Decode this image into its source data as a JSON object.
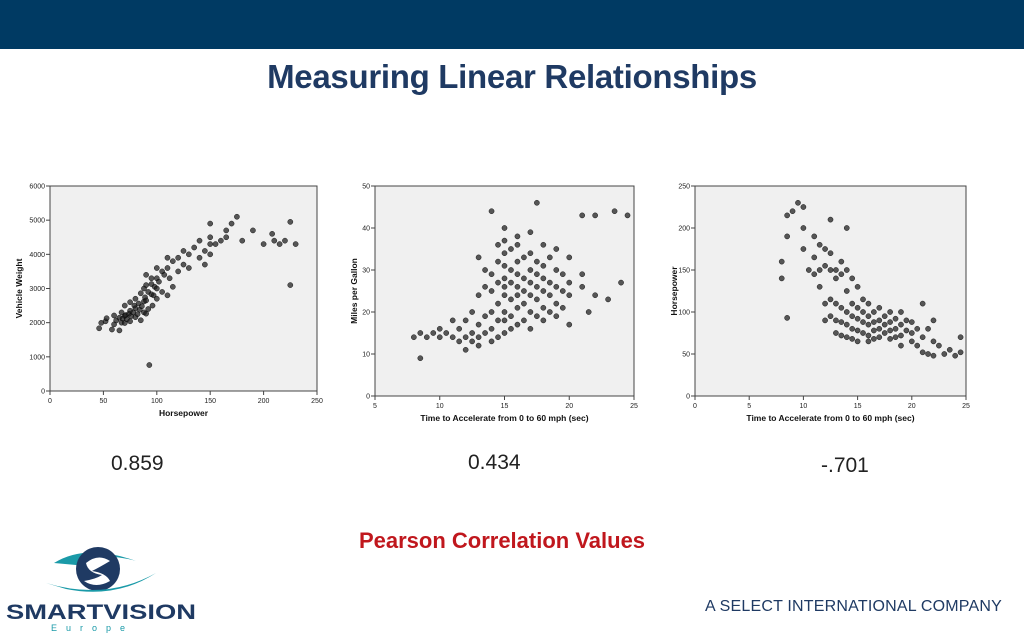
{
  "slide": {
    "title": "Measuring Linear Relationships",
    "caption": "Pearson Correlation Values",
    "company": "A SELECT INTERNATIONAL COMPANY",
    "logo_text": "SMARTVISION",
    "logo_subtext": "Europe",
    "colors": {
      "top_bar": "#003a63",
      "title": "#1f3a63",
      "caption": "#c0171d",
      "logo_teal": "#1a9aa8"
    }
  },
  "correlations": [
    {
      "value": "0.859"
    },
    {
      "value": "0.434"
    },
    {
      "value": "-.701"
    }
  ],
  "chart_data": [
    {
      "type": "scatter",
      "xlabel": "Horsepower",
      "ylabel": "Vehicle Weight",
      "xlim": [
        0,
        250
      ],
      "ylim": [
        0,
        6000
      ],
      "xticks": [
        0,
        50,
        100,
        150,
        200,
        250
      ],
      "yticks": [
        0,
        1000,
        2000,
        3000,
        4000,
        5000,
        6000
      ],
      "grid": false,
      "points": [
        [
          46,
          1835
        ],
        [
          48,
          1995
        ],
        [
          52,
          2040
        ],
        [
          53,
          2130
        ],
        [
          58,
          1800
        ],
        [
          60,
          1950
        ],
        [
          60,
          2210
        ],
        [
          62,
          2065
        ],
        [
          65,
          1773
        ],
        [
          65,
          2145
        ],
        [
          67,
          2000
        ],
        [
          67,
          2300
        ],
        [
          68,
          2120
        ],
        [
          70,
          2200
        ],
        [
          70,
          1990
        ],
        [
          70,
          2500
        ],
        [
          71,
          2223
        ],
        [
          72,
          2100
        ],
        [
          74,
          2260
        ],
        [
          75,
          2040
        ],
        [
          75,
          2350
        ],
        [
          75,
          2600
        ],
        [
          76,
          2190
        ],
        [
          78,
          2300
        ],
        [
          79,
          2500
        ],
        [
          80,
          2160
        ],
        [
          80,
          2420
        ],
        [
          80,
          2700
        ],
        [
          82,
          2250
        ],
        [
          83,
          2560
        ],
        [
          84,
          2380
        ],
        [
          85,
          2070
        ],
        [
          85,
          2860
        ],
        [
          86,
          2480
        ],
        [
          88,
          2620
        ],
        [
          88,
          2300
        ],
        [
          88,
          3000
        ],
        [
          89,
          2740
        ],
        [
          90,
          2265
        ],
        [
          90,
          2650
        ],
        [
          90,
          3100
        ],
        [
          90,
          3400
        ],
        [
          92,
          2900
        ],
        [
          92,
          2400
        ],
        [
          93,
          760
        ],
        [
          95,
          2830
        ],
        [
          95,
          3130
        ],
        [
          95,
          3300
        ],
        [
          96,
          2500
        ],
        [
          97,
          2800
        ],
        [
          98,
          3050
        ],
        [
          100,
          2700
        ],
        [
          100,
          3000
        ],
        [
          100,
          3300
        ],
        [
          100,
          3600
        ],
        [
          102,
          3200
        ],
        [
          105,
          2900
        ],
        [
          105,
          3500
        ],
        [
          107,
          3400
        ],
        [
          110,
          2800
        ],
        [
          110,
          3600
        ],
        [
          110,
          3900
        ],
        [
          112,
          3300
        ],
        [
          115,
          3800
        ],
        [
          115,
          3050
        ],
        [
          120,
          3500
        ],
        [
          120,
          3900
        ],
        [
          125,
          3700
        ],
        [
          125,
          4100
        ],
        [
          130,
          4000
        ],
        [
          130,
          3600
        ],
        [
          135,
          4200
        ],
        [
          140,
          3900
        ],
        [
          140,
          4400
        ],
        [
          145,
          4100
        ],
        [
          145,
          3700
        ],
        [
          150,
          4300
        ],
        [
          150,
          4000
        ],
        [
          150,
          4500
        ],
        [
          150,
          4900
        ],
        [
          155,
          4300
        ],
        [
          160,
          4400
        ],
        [
          165,
          4700
        ],
        [
          165,
          4500
        ],
        [
          170,
          4900
        ],
        [
          175,
          5100
        ],
        [
          180,
          4400
        ],
        [
          190,
          4700
        ],
        [
          200,
          4300
        ],
        [
          208,
          4600
        ],
        [
          210,
          4400
        ],
        [
          215,
          4300
        ],
        [
          220,
          4400
        ],
        [
          225,
          4950
        ],
        [
          225,
          3100
        ],
        [
          230,
          4300
        ]
      ]
    },
    {
      "type": "scatter",
      "xlabel": "Time to Accelerate from 0 to 60 mph (sec)",
      "ylabel": "Miles per Gallon",
      "xlim": [
        5,
        25
      ],
      "ylim": [
        0,
        50
      ],
      "xticks": [
        5,
        10,
        15,
        20,
        25
      ],
      "yticks": [
        0,
        10,
        20,
        30,
        40,
        50
      ],
      "grid": false,
      "points": [
        [
          8,
          14
        ],
        [
          8.5,
          9
        ],
        [
          8.5,
          15
        ],
        [
          9,
          14
        ],
        [
          9.5,
          15
        ],
        [
          10,
          14
        ],
        [
          10,
          16
        ],
        [
          10.5,
          15
        ],
        [
          11,
          14
        ],
        [
          11,
          18
        ],
        [
          11.5,
          13
        ],
        [
          11.5,
          16
        ],
        [
          12,
          11
        ],
        [
          12,
          14
        ],
        [
          12,
          18
        ],
        [
          12.5,
          13
        ],
        [
          12.5,
          15
        ],
        [
          12.5,
          20
        ],
        [
          13,
          12
        ],
        [
          13,
          14
        ],
        [
          13,
          17
        ],
        [
          13,
          24
        ],
        [
          13,
          33
        ],
        [
          13.5,
          15
        ],
        [
          13.5,
          19
        ],
        [
          13.5,
          26
        ],
        [
          13.5,
          30
        ],
        [
          14,
          13
        ],
        [
          14,
          16
        ],
        [
          14,
          20
        ],
        [
          14,
          25
        ],
        [
          14,
          29
        ],
        [
          14,
          44
        ],
        [
          14.5,
          14
        ],
        [
          14.5,
          18
        ],
        [
          14.5,
          22
        ],
        [
          14.5,
          27
        ],
        [
          14.5,
          32
        ],
        [
          14.5,
          36
        ],
        [
          15,
          15
        ],
        [
          15,
          18
        ],
        [
          15,
          20
        ],
        [
          15,
          24
        ],
        [
          15,
          26
        ],
        [
          15,
          28
        ],
        [
          15,
          31
        ],
        [
          15,
          34
        ],
        [
          15,
          37
        ],
        [
          15,
          40
        ],
        [
          15.5,
          16
        ],
        [
          15.5,
          19
        ],
        [
          15.5,
          23
        ],
        [
          15.5,
          27
        ],
        [
          15.5,
          30
        ],
        [
          15.5,
          35
        ],
        [
          16,
          17
        ],
        [
          16,
          21
        ],
        [
          16,
          24
        ],
        [
          16,
          26
        ],
        [
          16,
          29
        ],
        [
          16,
          32
        ],
        [
          16,
          36
        ],
        [
          16,
          38
        ],
        [
          16.5,
          18
        ],
        [
          16.5,
          22
        ],
        [
          16.5,
          25
        ],
        [
          16.5,
          28
        ],
        [
          16.5,
          33
        ],
        [
          17,
          16
        ],
        [
          17,
          20
        ],
        [
          17,
          24
        ],
        [
          17,
          27
        ],
        [
          17,
          30
        ],
        [
          17,
          34
        ],
        [
          17,
          39
        ],
        [
          17.5,
          19
        ],
        [
          17.5,
          23
        ],
        [
          17.5,
          26
        ],
        [
          17.5,
          29
        ],
        [
          17.5,
          32
        ],
        [
          17.5,
          46
        ],
        [
          18,
          18
        ],
        [
          18,
          21
        ],
        [
          18,
          25
        ],
        [
          18,
          28
        ],
        [
          18,
          31
        ],
        [
          18,
          36
        ],
        [
          18.5,
          20
        ],
        [
          18.5,
          24
        ],
        [
          18.5,
          27
        ],
        [
          18.5,
          33
        ],
        [
          19,
          19
        ],
        [
          19,
          22
        ],
        [
          19,
          26
        ],
        [
          19,
          30
        ],
        [
          19,
          35
        ],
        [
          19.5,
          21
        ],
        [
          19.5,
          25
        ],
        [
          19.5,
          29
        ],
        [
          20,
          17
        ],
        [
          20,
          24
        ],
        [
          20,
          27
        ],
        [
          20,
          33
        ],
        [
          21,
          26
        ],
        [
          21,
          29
        ],
        [
          21,
          43
        ],
        [
          21.5,
          20
        ],
        [
          22,
          24
        ],
        [
          22,
          43
        ],
        [
          23,
          23
        ],
        [
          23.5,
          44
        ],
        [
          24,
          27
        ],
        [
          24.5,
          43
        ]
      ]
    },
    {
      "type": "scatter",
      "xlabel": "Time to Accelerate from 0 to 60 mph (sec)",
      "ylabel": "Horsepower",
      "xlim": [
        0,
        25
      ],
      "ylim": [
        0,
        250
      ],
      "xticks": [
        0,
        5,
        10,
        15,
        20,
        25
      ],
      "yticks": [
        0,
        50,
        100,
        150,
        200,
        250
      ],
      "grid": false,
      "points": [
        [
          8,
          140
        ],
        [
          8,
          160
        ],
        [
          8.5,
          190
        ],
        [
          8.5,
          215
        ],
        [
          8.5,
          93
        ],
        [
          9,
          220
        ],
        [
          9.5,
          230
        ],
        [
          10,
          225
        ],
        [
          10,
          200
        ],
        [
          10,
          175
        ],
        [
          10.5,
          150
        ],
        [
          11,
          165
        ],
        [
          11,
          190
        ],
        [
          11,
          145
        ],
        [
          11.5,
          180
        ],
        [
          11.5,
          150
        ],
        [
          11.5,
          130
        ],
        [
          12,
          175
        ],
        [
          12,
          155
        ],
        [
          12,
          110
        ],
        [
          12,
          90
        ],
        [
          12.5,
          150
        ],
        [
          12.5,
          170
        ],
        [
          12.5,
          210
        ],
        [
          12.5,
          115
        ],
        [
          12.5,
          95
        ],
        [
          13,
          150
        ],
        [
          13,
          140
        ],
        [
          13,
          110
        ],
        [
          13,
          90
        ],
        [
          13,
          75
        ],
        [
          13.5,
          160
        ],
        [
          13.5,
          145
        ],
        [
          13.5,
          105
        ],
        [
          13.5,
          88
        ],
        [
          13.5,
          72
        ],
        [
          14,
          150
        ],
        [
          14,
          125
        ],
        [
          14,
          100
        ],
        [
          14,
          85
        ],
        [
          14,
          70
        ],
        [
          14,
          200
        ],
        [
          14.5,
          140
        ],
        [
          14.5,
          110
        ],
        [
          14.5,
          95
        ],
        [
          14.5,
          80
        ],
        [
          14.5,
          68
        ],
        [
          15,
          130
        ],
        [
          15,
          105
        ],
        [
          15,
          92
        ],
        [
          15,
          78
        ],
        [
          15,
          65
        ],
        [
          15.5,
          115
        ],
        [
          15.5,
          100
        ],
        [
          15.5,
          88
        ],
        [
          15.5,
          75
        ],
        [
          16,
          110
        ],
        [
          16,
          95
        ],
        [
          16,
          85
        ],
        [
          16,
          72
        ],
        [
          16,
          65
        ],
        [
          16.5,
          100
        ],
        [
          16.5,
          88
        ],
        [
          16.5,
          78
        ],
        [
          16.5,
          68
        ],
        [
          17,
          105
        ],
        [
          17,
          90
        ],
        [
          17,
          80
        ],
        [
          17,
          70
        ],
        [
          17.5,
          95
        ],
        [
          17.5,
          85
        ],
        [
          17.5,
          75
        ],
        [
          18,
          100
        ],
        [
          18,
          88
        ],
        [
          18,
          78
        ],
        [
          18,
          68
        ],
        [
          18.5,
          92
        ],
        [
          18.5,
          80
        ],
        [
          18.5,
          70
        ],
        [
          19,
          100
        ],
        [
          19,
          85
        ],
        [
          19,
          72
        ],
        [
          19,
          60
        ],
        [
          19.5,
          90
        ],
        [
          19.5,
          78
        ],
        [
          20,
          88
        ],
        [
          20,
          75
        ],
        [
          20,
          65
        ],
        [
          20.5,
          80
        ],
        [
          20.5,
          60
        ],
        [
          21,
          110
        ],
        [
          21,
          70
        ],
        [
          21,
          52
        ],
        [
          21.5,
          80
        ],
        [
          21.5,
          50
        ],
        [
          22,
          90
        ],
        [
          22,
          65
        ],
        [
          22,
          48
        ],
        [
          22.5,
          60
        ],
        [
          23,
          50
        ],
        [
          23.5,
          55
        ],
        [
          24,
          48
        ],
        [
          24.5,
          52
        ],
        [
          24.5,
          70
        ]
      ]
    }
  ]
}
